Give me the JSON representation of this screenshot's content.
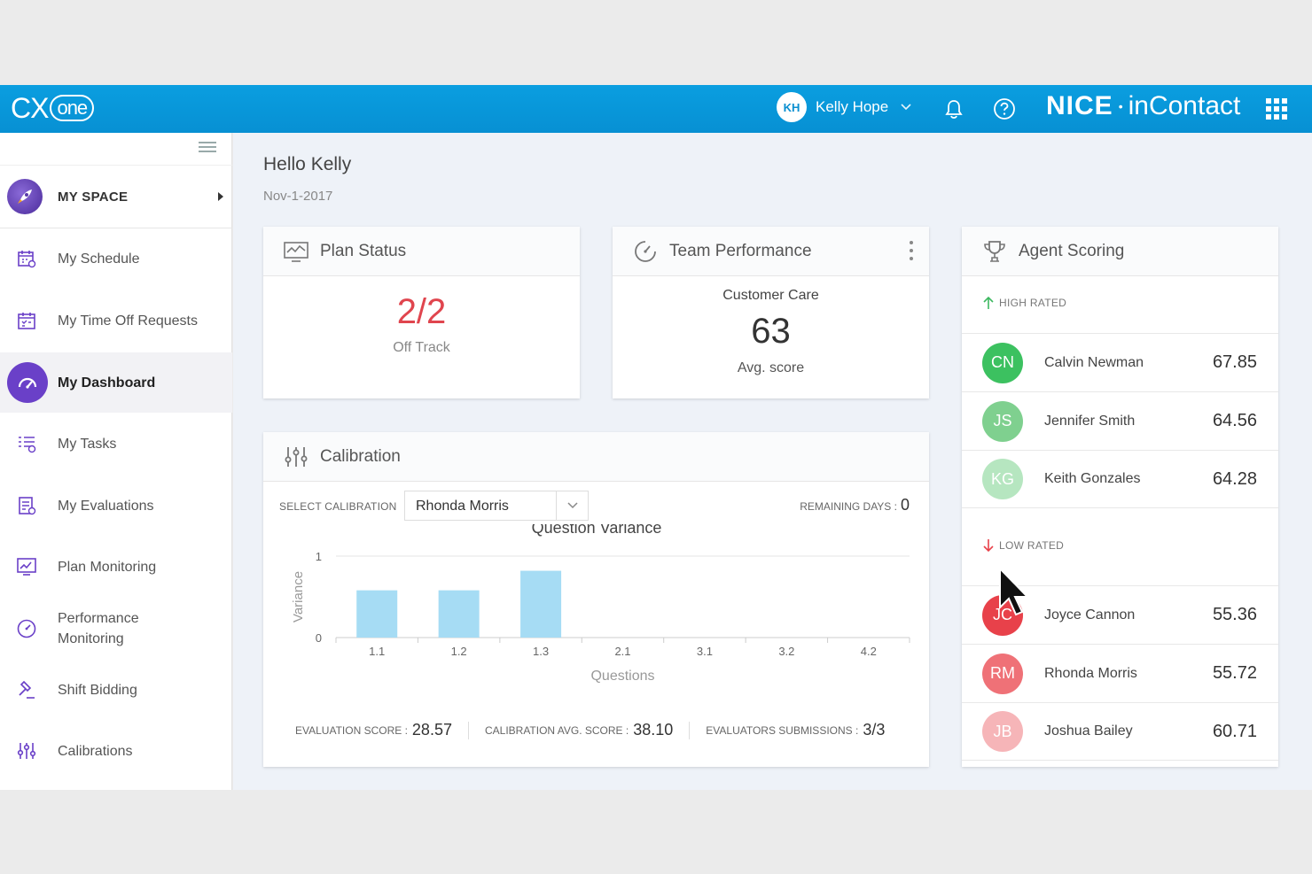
{
  "header": {
    "app_logo": "CX",
    "app_logo_suffix": "one",
    "user_initials": "KH",
    "user_name": "Kelly Hope",
    "brand_logo_main": "NICE",
    "brand_logo_sep": "•",
    "brand_logo_suffix": "inContact",
    "icons": [
      "chevron-down-icon",
      "bell-icon",
      "help-icon",
      "app-grid-icon"
    ]
  },
  "sidebar": {
    "section": "MY SPACE",
    "items": [
      {
        "label": "My Schedule",
        "icon": "schedule-icon"
      },
      {
        "label": "My Time Off Requests",
        "icon": "calendar-icon"
      },
      {
        "label": "My Dashboard",
        "icon": "dashboard-icon",
        "active": true
      },
      {
        "label": "My Tasks",
        "icon": "tasks-icon"
      },
      {
        "label": "My Evaluations",
        "icon": "evaluations-icon"
      },
      {
        "label": "Plan Monitoring",
        "icon": "plan-monitoring-icon"
      },
      {
        "label": "Performance Monitoring",
        "icon": "performance-icon"
      },
      {
        "label": "Shift Bidding",
        "icon": "gavel-icon"
      },
      {
        "label": "Calibrations",
        "icon": "sliders-icon"
      }
    ]
  },
  "main": {
    "greeting": "Hello Kelly",
    "date": "Nov-1-2017",
    "plan_status": {
      "title": "Plan Status",
      "value": "2/2",
      "label": "Off Track"
    },
    "team_performance": {
      "title": "Team Performance",
      "group": "Customer Care",
      "value": "63",
      "label": "Avg. score"
    },
    "calibration": {
      "title": "Calibration",
      "select_label": "SELECT CALIBRATION",
      "selected": "Rhonda Morris",
      "remaining_label": "REMAINING DAYS :",
      "remaining_value": "0",
      "evaluation_score_label": "EVALUATION SCORE :",
      "evaluation_score": "28.57",
      "calibration_avg_label": "CALIBRATION AVG. SCORE :",
      "calibration_avg": "38.10",
      "evaluator_label": "EVALUATORS SUBMISSIONS :",
      "evaluator_value": "3/3"
    },
    "agent_scoring": {
      "title": "Agent Scoring",
      "high_label": "HIGH RATED",
      "low_label": "LOW RATED",
      "high": [
        {
          "initials": "CN",
          "name": "Calvin Newman",
          "score": "67.85",
          "color": "#3cc160"
        },
        {
          "initials": "JS",
          "name": "Jennifer Smith",
          "score": "64.56",
          "color": "#7fd08f"
        },
        {
          "initials": "KG",
          "name": "Keith Gonzales",
          "score": "64.28",
          "color": "#b6e6c0"
        }
      ],
      "low": [
        {
          "initials": "JC",
          "name": "Joyce Cannon",
          "score": "55.36",
          "color": "#e8414a"
        },
        {
          "initials": "RM",
          "name": "Rhonda Morris",
          "score": "55.72",
          "color": "#ef7177"
        },
        {
          "initials": "JB",
          "name": "Joshua Bailey",
          "score": "60.71",
          "color": "#f6b5b8"
        }
      ]
    }
  },
  "chart_data": {
    "type": "bar",
    "title": "Question Variance",
    "xlabel": "Questions",
    "ylabel": "Variance",
    "categories": [
      "1.1",
      "1.2",
      "1.3",
      "2.1",
      "3.1",
      "3.2",
      "4.2"
    ],
    "values": [
      0.58,
      0.58,
      0.82,
      0,
      0,
      0,
      0
    ],
    "ylim": [
      0,
      1
    ],
    "yticks": [
      "1",
      "0"
    ],
    "grid": true,
    "bar_color": "#a6dcf4"
  }
}
